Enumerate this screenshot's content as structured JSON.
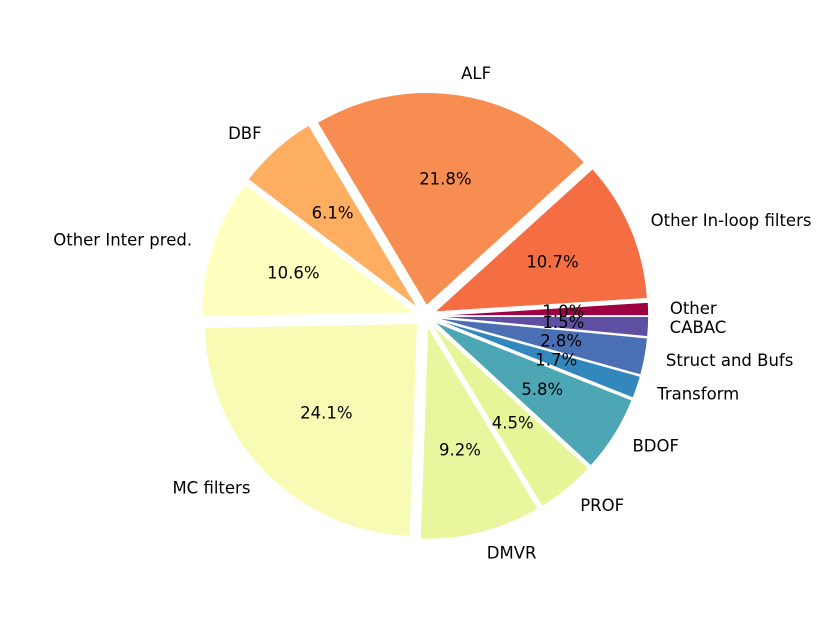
{
  "chart_data": {
    "type": "pie",
    "start_angle_deg": 0,
    "direction": "counterclockwise",
    "explode": 0.05,
    "categories": [
      "Other",
      "Other In-loop filters",
      "ALF",
      "DBF",
      "Other Inter pred.",
      "MC filters",
      "DMVR",
      "PROF",
      "BDOF",
      "Transform",
      "Struct and Bufs",
      "CABAC"
    ],
    "values": [
      1.0,
      10.7,
      21.8,
      6.1,
      10.6,
      24.1,
      9.2,
      4.5,
      5.8,
      1.7,
      2.8,
      1.5
    ],
    "labels": [
      "1.0%",
      "10.7%",
      "21.8%",
      "6.1%",
      "10.6%",
      "24.1%",
      "9.2%",
      "4.5%",
      "5.8%",
      "1.7%",
      "2.8%",
      "1.5%"
    ],
    "colors": [
      "#9e0142",
      "#f46d43",
      "#f88d52",
      "#fdae61",
      "#ffffbf",
      "#f7fbb3",
      "#eaf69e",
      "#e6f598",
      "#4da6b4",
      "#3288bd",
      "#4a6fb4",
      "#5e4fa2"
    ]
  }
}
